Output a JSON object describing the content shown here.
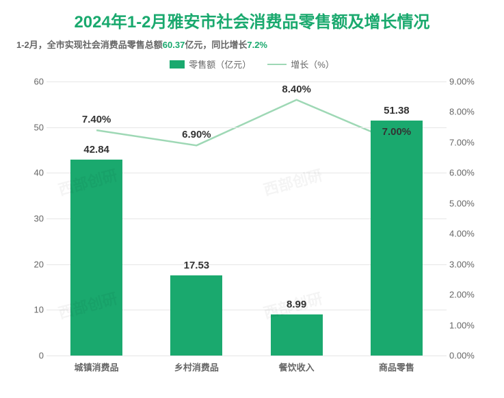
{
  "title": "2024年1-2月雅安市社会消费品零售额及增长情况",
  "subtitle": {
    "prefix": "1-2月，全市实现社会消费品零售总额",
    "value1": "60.37",
    "mid": "亿元，同比增长",
    "value2": "7.2%"
  },
  "legend": {
    "bar_label": "零售额（亿元）",
    "line_label": "增长（%）"
  },
  "chart": {
    "type": "bar+line",
    "background_color": "#ffffff",
    "grid_color": "#e6e6e6",
    "bar_color": "#1aa96e",
    "line_color": "#9ed8b5",
    "text_color": "#666666",
    "value_label_color": "#333333",
    "title_color": "#1aa96e",
    "title_fontsize": 24,
    "subtitle_fontsize": 13,
    "legend_fontsize": 13,
    "axis_fontsize": 13,
    "value_label_fontsize": 15,
    "bar_width_pct": 13,
    "categories": [
      "城镇消费品",
      "乡村消费品",
      "餐饮收入",
      "商品零售"
    ],
    "bar_values": [
      42.84,
      17.53,
      8.99,
      51.38
    ],
    "line_values": [
      7.4,
      6.9,
      8.4,
      7.0
    ],
    "line_labels": [
      "7.40%",
      "6.90%",
      "8.40%",
      "7.00%"
    ],
    "y_left": {
      "min": 0,
      "max": 60,
      "step": 10
    },
    "y_right": {
      "min": 0,
      "max": 9,
      "step": 1,
      "suffix": ".00%"
    },
    "line_width": 2.5
  },
  "watermark_text": "西部创研"
}
